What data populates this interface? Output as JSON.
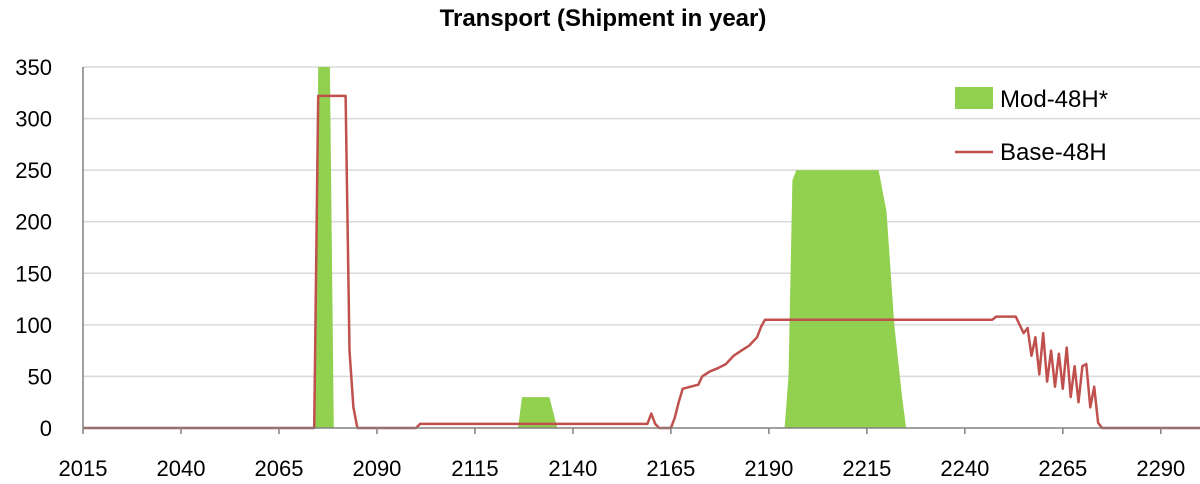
{
  "chart_data": {
    "type": "area",
    "title": "Transport (Shipment in year)",
    "xlabel": "",
    "ylabel": "",
    "xlim": [
      2015,
      2300
    ],
    "ylim": [
      0,
      350
    ],
    "x_ticks": [
      2015,
      2040,
      2065,
      2090,
      2115,
      2140,
      2165,
      2190,
      2215,
      2240,
      2265,
      2290
    ],
    "y_ticks": [
      0,
      50,
      100,
      150,
      200,
      250,
      300,
      350
    ],
    "grid": "horizontal",
    "legend_position": "top-right",
    "series": [
      {
        "name": "Mod-48H*",
        "type": "area",
        "color": "#92d050",
        "points": [
          [
            2015,
            0
          ],
          [
            2074,
            0
          ],
          [
            2075,
            350
          ],
          [
            2078,
            350
          ],
          [
            2079,
            0
          ],
          [
            2126,
            0
          ],
          [
            2127,
            30
          ],
          [
            2134,
            30
          ],
          [
            2136,
            0
          ],
          [
            2194,
            0
          ],
          [
            2195,
            50
          ],
          [
            2196,
            240
          ],
          [
            2197,
            250
          ],
          [
            2218,
            250
          ],
          [
            2220,
            210
          ],
          [
            2222,
            100
          ],
          [
            2224,
            30
          ],
          [
            2225,
            0
          ],
          [
            2300,
            0
          ]
        ]
      },
      {
        "name": "Base-48H",
        "type": "line",
        "color": "#c0504d",
        "points": [
          [
            2015,
            0
          ],
          [
            2074,
            0
          ],
          [
            2075,
            322
          ],
          [
            2082,
            322
          ],
          [
            2083,
            75
          ],
          [
            2084,
            20
          ],
          [
            2085,
            0
          ],
          [
            2100,
            0
          ],
          [
            2101,
            4
          ],
          [
            2159,
            4
          ],
          [
            2160,
            14
          ],
          [
            2161,
            4
          ],
          [
            2162,
            0
          ],
          [
            2165,
            0
          ],
          [
            2166,
            10
          ],
          [
            2167,
            25
          ],
          [
            2168,
            38
          ],
          [
            2170,
            40
          ],
          [
            2172,
            42
          ],
          [
            2173,
            50
          ],
          [
            2175,
            55
          ],
          [
            2177,
            58
          ],
          [
            2179,
            62
          ],
          [
            2181,
            70
          ],
          [
            2183,
            75
          ],
          [
            2185,
            80
          ],
          [
            2187,
            88
          ],
          [
            2188,
            98
          ],
          [
            2189,
            105
          ],
          [
            2247,
            105
          ],
          [
            2248,
            108
          ],
          [
            2253,
            108
          ],
          [
            2254,
            100
          ],
          [
            2255,
            92
          ],
          [
            2256,
            97
          ],
          [
            2257,
            70
          ],
          [
            2258,
            88
          ],
          [
            2259,
            52
          ],
          [
            2260,
            92
          ],
          [
            2261,
            45
          ],
          [
            2262,
            75
          ],
          [
            2263,
            40
          ],
          [
            2264,
            72
          ],
          [
            2265,
            38
          ],
          [
            2266,
            78
          ],
          [
            2267,
            30
          ],
          [
            2268,
            60
          ],
          [
            2269,
            25
          ],
          [
            2270,
            60
          ],
          [
            2271,
            62
          ],
          [
            2272,
            20
          ],
          [
            2273,
            40
          ],
          [
            2274,
            5
          ],
          [
            2275,
            0
          ],
          [
            2300,
            0
          ]
        ]
      }
    ]
  }
}
